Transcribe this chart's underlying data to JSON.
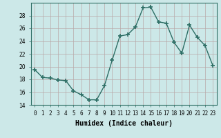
{
  "x": [
    0,
    1,
    2,
    3,
    4,
    5,
    6,
    7,
    8,
    9,
    10,
    11,
    12,
    13,
    14,
    15,
    16,
    17,
    18,
    19,
    20,
    21,
    22,
    23
  ],
  "y": [
    19.5,
    18.3,
    18.2,
    17.9,
    17.8,
    16.2,
    15.6,
    14.8,
    14.8,
    17.0,
    21.0,
    24.8,
    25.0,
    26.2,
    29.2,
    29.3,
    27.0,
    26.8,
    23.8,
    22.1,
    26.5,
    24.6,
    23.3,
    20.2
  ],
  "line_color": "#2d6e65",
  "marker": "+",
  "marker_size": 4,
  "marker_lw": 1.2,
  "bg_color": "#cce8e8",
  "grid_color": "#b8a8a8",
  "xlabel": "Humidex (Indice chaleur)",
  "ylim": [
    14,
    30
  ],
  "xlim": [
    -0.5,
    23.5
  ],
  "yticks": [
    14,
    16,
    18,
    20,
    22,
    24,
    26,
    28
  ],
  "xtick_labels": [
    "0",
    "1",
    "2",
    "3",
    "4",
    "5",
    "6",
    "7",
    "8",
    "9",
    "10",
    "11",
    "12",
    "13",
    "14",
    "15",
    "16",
    "17",
    "18",
    "19",
    "20",
    "21",
    "22",
    "23"
  ],
  "axis_fontsize": 6.5,
  "tick_fontsize": 5.5,
  "xlabel_fontsize": 7,
  "line_width": 1.0
}
